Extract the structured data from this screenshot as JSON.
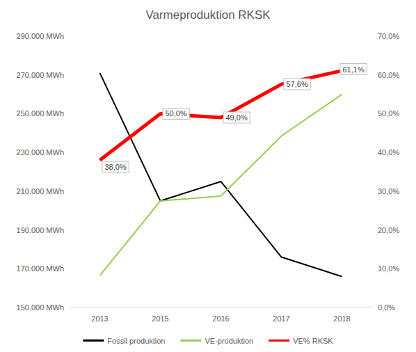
{
  "chart_data": {
    "type": "line",
    "title": "Varmeproduktion RKSK",
    "categories": [
      "2013",
      "2015",
      "2016",
      "2017",
      "2018"
    ],
    "series": [
      {
        "name": "Fossil produktion",
        "color": "#000000",
        "values": [
          271000,
          205000,
          215000,
          176000,
          166000
        ]
      },
      {
        "name": "VE-produktion",
        "color": "#92d050",
        "values": [
          166500,
          205000,
          207500,
          238500,
          260000
        ]
      },
      {
        "name": "VE% RKSK",
        "color": "#ff0000",
        "axis": "y2",
        "values": [
          38.0,
          50.0,
          49.0,
          57.6,
          61.1
        ],
        "value_labels": [
          "38,0%",
          "50,0%",
          "49,0%",
          "57,6%",
          "61,1%"
        ]
      }
    ],
    "ylim": [
      150000,
      290000
    ],
    "yticks": [
      {
        "value": 150000,
        "label": "150.000 MWh"
      },
      {
        "value": 170000,
        "label": "170.000 MWh"
      },
      {
        "value": 190000,
        "label": "190.000 MWh"
      },
      {
        "value": 210000,
        "label": "210.000 MWh"
      },
      {
        "value": 230000,
        "label": "230.000 MWh"
      },
      {
        "value": 250000,
        "label": "250.000 MWh"
      },
      {
        "value": 270000,
        "label": "270.000 MWh"
      },
      {
        "value": 290000,
        "label": "290.000 MWh"
      }
    ],
    "y2lim": [
      0,
      70
    ],
    "y2ticks": [
      {
        "value": 0,
        "label": "0,0%"
      },
      {
        "value": 10,
        "label": "10,0%"
      },
      {
        "value": 20,
        "label": "20,0%"
      },
      {
        "value": 30,
        "label": "30,0%"
      },
      {
        "value": 40,
        "label": "40,0%"
      },
      {
        "value": 50,
        "label": "50,0%"
      },
      {
        "value": 60,
        "label": "60,0%"
      },
      {
        "value": 70,
        "label": "70,0%"
      }
    ],
    "grid": false,
    "legend": "bottom",
    "data_labels": true
  }
}
